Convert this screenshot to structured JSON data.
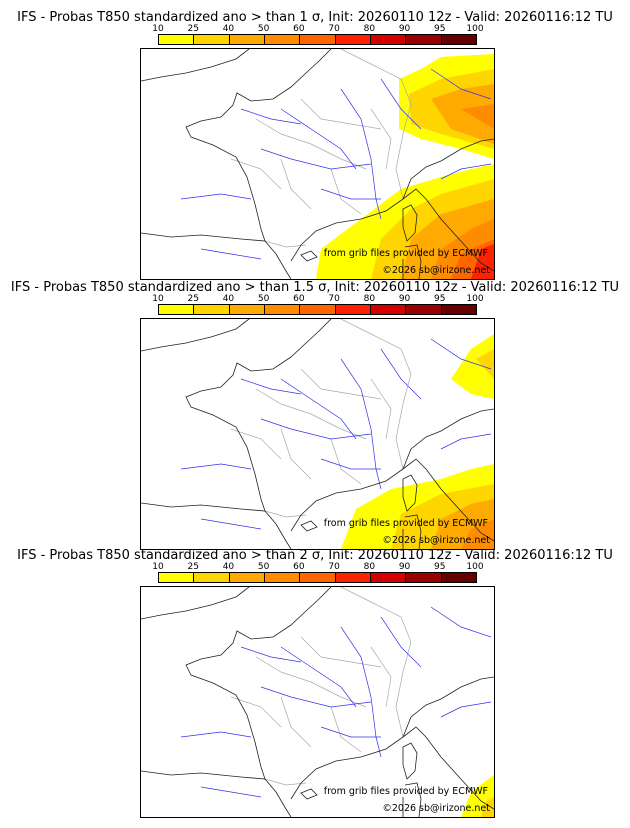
{
  "colorbar": {
    "ticks": [
      "10",
      "25",
      "40",
      "50",
      "60",
      "70",
      "80",
      "90",
      "95",
      "100"
    ],
    "colors": [
      "#ffff00",
      "#ffd500",
      "#ffaa00",
      "#ff8c00",
      "#ff6600",
      "#ff2200",
      "#d40000",
      "#990000",
      "#660000"
    ]
  },
  "panels": [
    {
      "title": "IFS - Probas T850  standardized ano > than 1 σ, Init: 20260110 12z - Valid: 20260116:12 TU",
      "level": 3
    },
    {
      "title": "IFS - Probas T850  standardized ano > than 1.5 σ, Init: 20260110 12z - Valid: 20260116:12 TU",
      "level": 2
    },
    {
      "title": "IFS - Probas T850  standardized ano > than 2 σ, Init: 20260110 12z - Valid: 20260116:12 TU",
      "level": 1
    }
  ],
  "credits": {
    "source": "from grib files provided by ECMWF",
    "copyright": "©2026 sb@irizone.net"
  }
}
